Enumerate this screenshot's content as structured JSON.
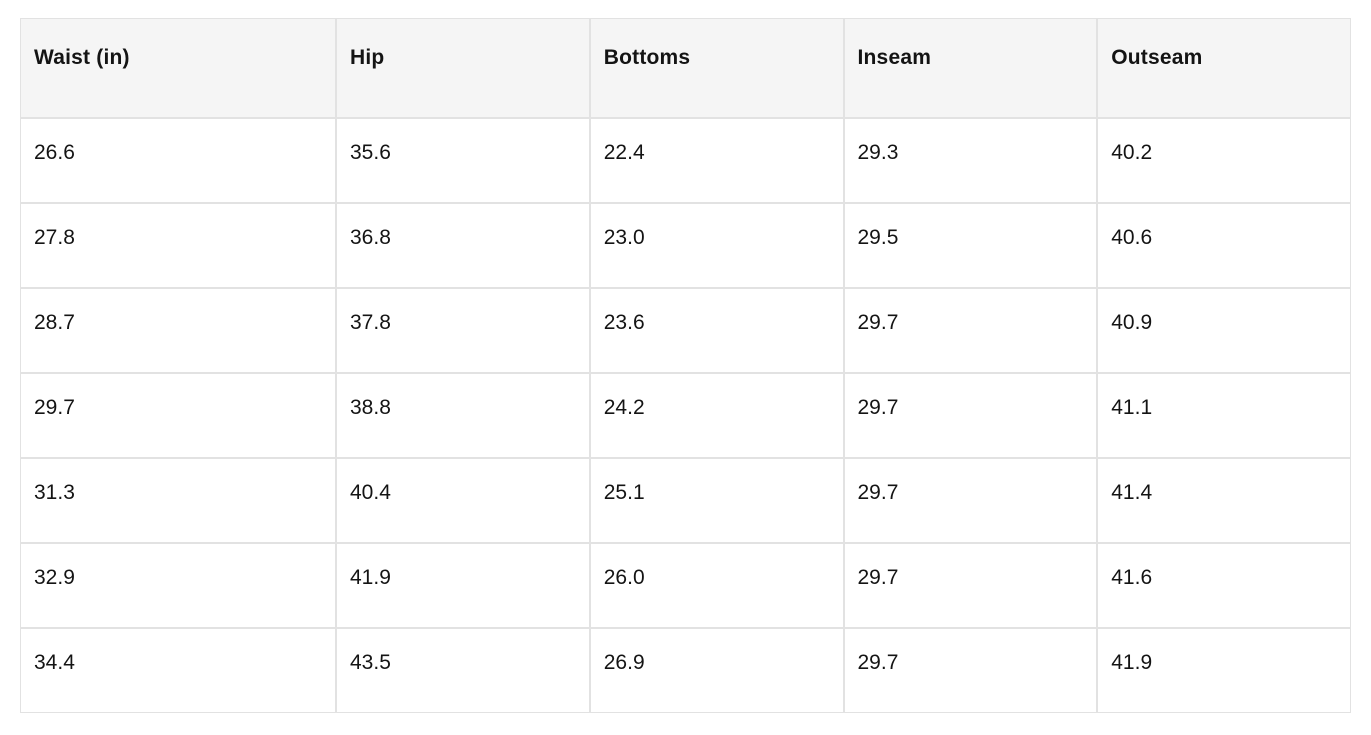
{
  "page": {
    "background": "#ffffff"
  },
  "table": {
    "title": "size-chart",
    "header_bg": "#f5f5f5",
    "border_color": "#e2e2e2",
    "text_color": "#141414",
    "columns": [
      "Waist (in)",
      "Hip",
      "Bottoms",
      "Inseam",
      "Outseam"
    ],
    "rows": [
      [
        "26.6",
        "35.6",
        "22.4",
        "29.3",
        "40.2"
      ],
      [
        "27.8",
        "36.8",
        "23.0",
        "29.5",
        "40.6"
      ],
      [
        "28.7",
        "37.8",
        "23.6",
        "29.7",
        "40.9"
      ],
      [
        "29.7",
        "38.8",
        "24.2",
        "29.7",
        "41.1"
      ],
      [
        "31.3",
        "40.4",
        "25.1",
        "29.7",
        "41.4"
      ],
      [
        "32.9",
        "41.9",
        "26.0",
        "29.7",
        "41.6"
      ],
      [
        "34.4",
        "43.5",
        "26.9",
        "29.7",
        "41.9"
      ]
    ]
  },
  "chart_data": {
    "type": "table",
    "title": "",
    "columns": [
      "Waist (in)",
      "Hip",
      "Bottoms",
      "Inseam",
      "Outseam"
    ],
    "rows": [
      [
        26.6,
        35.6,
        22.4,
        29.3,
        40.2
      ],
      [
        27.8,
        36.8,
        23.0,
        29.5,
        40.6
      ],
      [
        28.7,
        37.8,
        23.6,
        29.7,
        40.9
      ],
      [
        29.7,
        38.8,
        24.2,
        29.7,
        41.1
      ],
      [
        31.3,
        40.4,
        25.1,
        29.7,
        41.4
      ],
      [
        32.9,
        41.9,
        26.0,
        29.7,
        41.6
      ],
      [
        34.4,
        43.5,
        26.9,
        29.7,
        41.9
      ]
    ]
  }
}
